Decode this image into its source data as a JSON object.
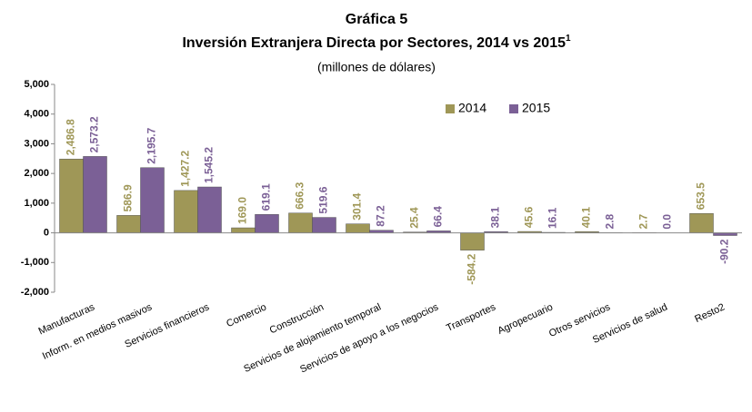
{
  "chart_data": {
    "type": "bar",
    "title": "Gráfica 5",
    "subtitle": "Inversión Extranjera Directa por Sectores, 2014 vs 2015",
    "subtitle_note": "1",
    "unit": "(millones de dólares)",
    "categories": [
      "Manufacturas",
      "Inform. en medios masivos",
      "Servicios financieros",
      "Comercio",
      "Construcción",
      "Servicios de alojamiento  temporal",
      "Servicios de apoyo a los negocios",
      "Transportes",
      "Agropecuario",
      "Otros servicios",
      "Servicios de salud",
      "Resto2"
    ],
    "series": [
      {
        "name": "2014",
        "color": "#9f9757",
        "values": [
          2486.8,
          586.9,
          1427.2,
          169.0,
          666.3,
          301.4,
          25.4,
          -584.2,
          45.6,
          40.1,
          2.7,
          653.5
        ],
        "value_labels": [
          "2,486.8",
          "586.9",
          "1,427.2",
          "169.0",
          "666.3",
          "301.4",
          "25.4",
          "-584.2",
          "45.6",
          "40.1",
          "2.7",
          "653.5"
        ]
      },
      {
        "name": "2015",
        "color": "#7b6096",
        "values": [
          2573.2,
          2195.7,
          1545.2,
          619.1,
          519.6,
          87.2,
          66.4,
          38.1,
          16.1,
          2.8,
          0.0,
          -90.2
        ],
        "value_labels": [
          "2,573.2",
          "2,195.7",
          "1,545.2",
          "619.1",
          "519.6",
          "87.2",
          "66.4",
          "38.1",
          "16.1",
          "2.8",
          "0.0",
          "-90.2"
        ]
      }
    ],
    "ylim": [
      -2000,
      5000
    ],
    "yticks": [
      {
        "value": -2000,
        "label": "-2,000"
      },
      {
        "value": -1000,
        "label": "-1,000"
      },
      0,
      {
        "value": 1000,
        "label": "1,000"
      },
      {
        "value": 2000,
        "label": "2,000"
      },
      {
        "value": 3000,
        "label": "3,000"
      },
      {
        "value": 4000,
        "label": "4,000"
      },
      {
        "value": 5000,
        "label": "5,000"
      }
    ],
    "grid": false,
    "legend": "upper right"
  }
}
